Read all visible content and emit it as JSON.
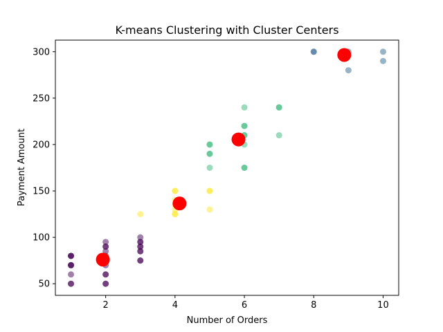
{
  "chart_data": {
    "type": "scatter",
    "title": "K-means Clustering with Cluster Centers",
    "xlabel": "Number of Orders",
    "ylabel": "Payment Amount",
    "xlim": [
      0.55,
      10.45
    ],
    "ylim": [
      37.5,
      312.5
    ],
    "xticks": [
      2,
      4,
      6,
      8,
      10
    ],
    "yticks": [
      50,
      100,
      150,
      200,
      250,
      300
    ],
    "grid": false,
    "legend": "none",
    "point_opacity": 0.5,
    "series": [
      {
        "cluster": 0,
        "color": "#440154",
        "points": [
          [
            1,
            80
          ],
          [
            1,
            80
          ],
          [
            1,
            80
          ],
          [
            1,
            70
          ],
          [
            1,
            70
          ],
          [
            1,
            70
          ],
          [
            1,
            60
          ],
          [
            1,
            50
          ],
          [
            1,
            50
          ],
          [
            2,
            95
          ],
          [
            2,
            90
          ],
          [
            2,
            90
          ],
          [
            2,
            85
          ],
          [
            2,
            80
          ],
          [
            2,
            75
          ],
          [
            2,
            70
          ],
          [
            2,
            60
          ],
          [
            2,
            60
          ],
          [
            2,
            50
          ],
          [
            2,
            50
          ],
          [
            3,
            100
          ],
          [
            3,
            95
          ],
          [
            3,
            95
          ],
          [
            3,
            90
          ],
          [
            3,
            90
          ],
          [
            3,
            85
          ],
          [
            3,
            85
          ],
          [
            3,
            75
          ],
          [
            3,
            75
          ]
        ]
      },
      {
        "cluster": 1,
        "color": "#31688e",
        "points": [
          [
            8,
            300
          ],
          [
            8,
            300
          ],
          [
            9,
            300
          ],
          [
            9,
            280
          ],
          [
            10,
            300
          ],
          [
            10,
            290
          ]
        ]
      },
      {
        "cluster": 2,
        "color": "#35b779",
        "points": [
          [
            5,
            200
          ],
          [
            5,
            200
          ],
          [
            5,
            190
          ],
          [
            5,
            190
          ],
          [
            5,
            175
          ],
          [
            6,
            240
          ],
          [
            6,
            220
          ],
          [
            6,
            220
          ],
          [
            6,
            210
          ],
          [
            6,
            210
          ],
          [
            6,
            200
          ],
          [
            6,
            175
          ],
          [
            6,
            175
          ],
          [
            7,
            240
          ],
          [
            7,
            240
          ],
          [
            7,
            210
          ]
        ]
      },
      {
        "cluster": 3,
        "color": "#fde725",
        "points": [
          [
            3,
            125
          ],
          [
            4,
            150
          ],
          [
            4,
            150
          ],
          [
            4,
            140
          ],
          [
            4,
            135
          ],
          [
            4,
            130
          ],
          [
            4,
            125
          ],
          [
            4,
            125
          ],
          [
            5,
            150
          ],
          [
            5,
            150
          ],
          [
            5,
            130
          ]
        ]
      }
    ],
    "centers": {
      "color": "#ff0000",
      "points": [
        [
          1.92,
          76
        ],
        [
          4.13,
          136.5
        ],
        [
          5.83,
          205.5
        ],
        [
          8.88,
          296.5
        ]
      ]
    }
  }
}
